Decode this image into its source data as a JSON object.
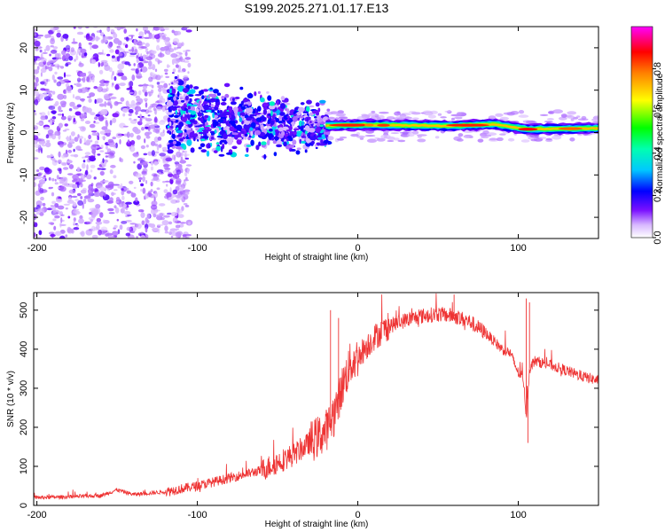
{
  "title": "S199.2025.271.01.17.E13",
  "chart_data": [
    {
      "type": "heatmap",
      "name": "spectrogram",
      "title": "S199.2025.271.01.17.E13",
      "xlabel": "Height of straight line (km)",
      "ylabel": "Frequency (Hz)",
      "xlim": [
        -202,
        150
      ],
      "ylim": [
        -25,
        25
      ],
      "x_ticks": [
        -200,
        -100,
        0,
        100
      ],
      "x_tick_labels": [
        "-200",
        "-100",
        "0",
        "100"
      ],
      "y_ticks": [
        -20,
        -10,
        0,
        10,
        20
      ],
      "y_tick_labels": [
        "-20",
        "-10",
        "0",
        "10",
        "20"
      ],
      "colorbar": {
        "label": "Normalized spectral amplitude",
        "range": [
          0,
          1
        ],
        "ticks": [
          0.0,
          0.2,
          0.4,
          0.6,
          0.8
        ],
        "tick_labels": [
          "0.0",
          "0.2",
          "0.4",
          "0.6",
          "0.8"
        ],
        "colormap": [
          "#ffffff",
          "#b070ff",
          "#6a00ff",
          "#0000ff",
          "#00ffff",
          "#00ff00",
          "#ffff00",
          "#ff8000",
          "#ff0000",
          "#ff00ff"
        ]
      },
      "features": {
        "noise_region_x": [
          -202,
          -115
        ],
        "scatter_region_x": [
          -115,
          -20
        ],
        "band_start_x": -20,
        "band_center_hz": [
          [
            -20,
            1.6
          ],
          [
            0,
            1.8
          ],
          [
            60,
            1.6
          ],
          [
            85,
            2.0
          ],
          [
            105,
            0.8
          ],
          [
            150,
            1.0
          ]
        ]
      }
    },
    {
      "type": "line",
      "name": "snr",
      "title": "",
      "xlabel": "Height of straight line (km)",
      "ylabel": "SNR (10 * v/v)",
      "xlim": [
        -202,
        150
      ],
      "ylim": [
        0,
        545
      ],
      "x_ticks": [
        -200,
        -100,
        0,
        100
      ],
      "x_tick_labels": [
        "-200",
        "-100",
        "0",
        "100"
      ],
      "y_ticks": [
        0,
        100,
        200,
        300,
        400,
        500
      ],
      "y_tick_labels": [
        "0",
        "100",
        "200",
        "300",
        "400",
        "500"
      ],
      "line_color": "#ee3333",
      "series": [
        {
          "name": "SNR",
          "x": [
            -202,
            -180,
            -160,
            -150,
            -140,
            -120,
            -100,
            -80,
            -60,
            -40,
            -30,
            -20,
            -15,
            -10,
            -5,
            0,
            10,
            20,
            30,
            40,
            50,
            60,
            70,
            80,
            90,
            95,
            100,
            103,
            105,
            107,
            110,
            120,
            130,
            140,
            150
          ],
          "y": [
            20,
            22,
            25,
            40,
            28,
            35,
            50,
            70,
            90,
            130,
            160,
            190,
            230,
            300,
            360,
            380,
            430,
            460,
            475,
            485,
            490,
            485,
            470,
            440,
            400,
            390,
            340,
            330,
            230,
            350,
            370,
            360,
            345,
            330,
            320
          ]
        }
      ]
    }
  ]
}
